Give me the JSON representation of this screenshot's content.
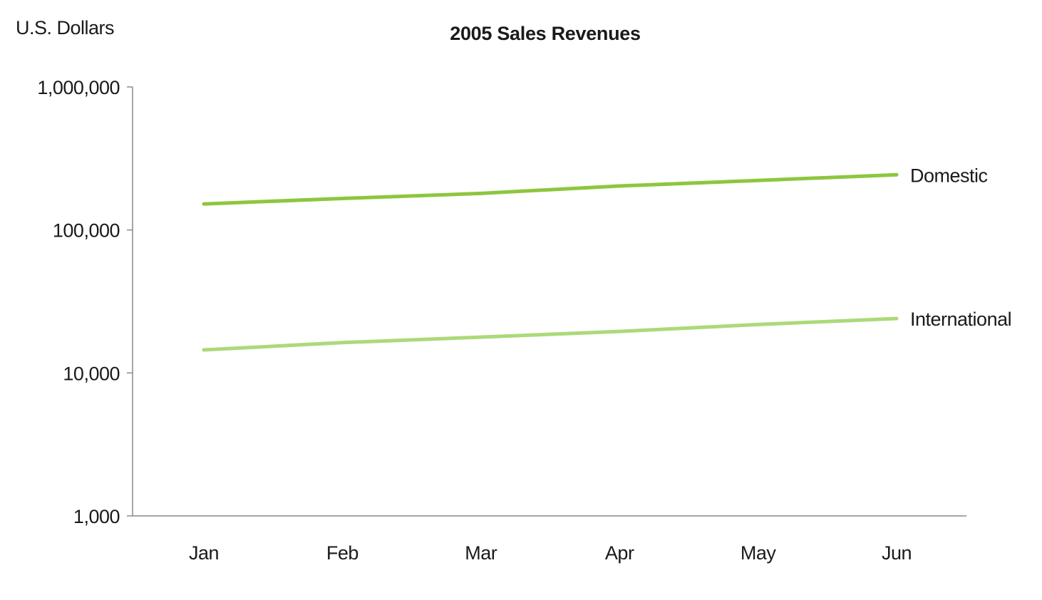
{
  "chart_data": {
    "type": "line",
    "title": "2005 Sales Revenues",
    "ylabel": "U.S. Dollars",
    "xlabel": "",
    "yscale": "log",
    "ylim": [
      1000,
      1000000
    ],
    "yticks": [
      {
        "value": 1000,
        "label": "1,000"
      },
      {
        "value": 10000,
        "label": "10,000"
      },
      {
        "value": 100000,
        "label": "100,000"
      },
      {
        "value": 1000000,
        "label": "1,000,000"
      }
    ],
    "categories": [
      "Jan",
      "Feb",
      "Mar",
      "Apr",
      "May",
      "Jun"
    ],
    "grid": false,
    "legend": "direct labels at line ends",
    "series": [
      {
        "name": "Domestic",
        "color": "#8dc63f",
        "values": [
          152000,
          166000,
          180000,
          203000,
          222000,
          243000
        ]
      },
      {
        "name": "International",
        "color": "#add97a",
        "values": [
          14500,
          16300,
          17800,
          19500,
          21800,
          24000
        ]
      }
    ]
  }
}
